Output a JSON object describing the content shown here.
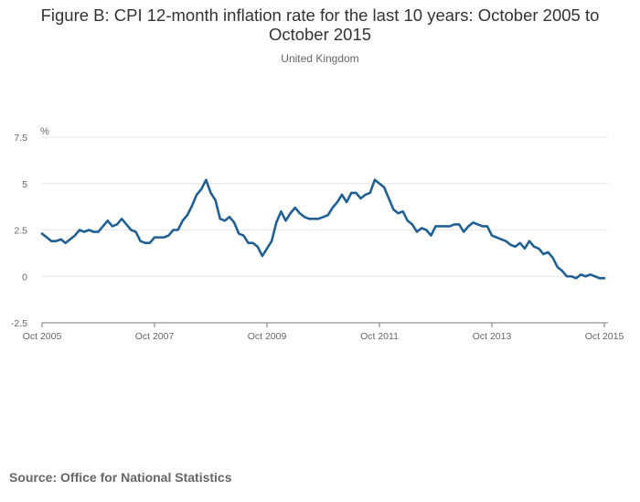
{
  "chart_data": {
    "type": "line",
    "title_line1": "Figure B: CPI 12-month inflation rate for the last 10 years: October 2005 to",
    "title_line2": "October 2015",
    "subtitle": "United Kingdom",
    "ylabel": "%",
    "ylim": [
      -2.5,
      7.5
    ],
    "yticks": [
      -2.5,
      0,
      2.5,
      5,
      7.5
    ],
    "ytick_labels": [
      "-2.5",
      "0",
      "2.5",
      "5",
      "7.5"
    ],
    "xlim": [
      "Oct 2005",
      "Oct 2015"
    ],
    "xticks": [
      "Oct 2005",
      "Oct 2007",
      "Oct 2009",
      "Oct 2011",
      "Oct 2013",
      "Oct 2015"
    ],
    "grid": true,
    "legend": "none",
    "line_color": "#206095",
    "series": [
      {
        "x_start": "Oct 2005",
        "x_end": "Oct 2015",
        "frequency": "monthly",
        "values": [
          2.3,
          2.1,
          1.9,
          1.9,
          2.0,
          1.8,
          2.0,
          2.2,
          2.5,
          2.4,
          2.5,
          2.4,
          2.4,
          2.7,
          3.0,
          2.7,
          2.8,
          3.1,
          2.8,
          2.5,
          2.4,
          1.9,
          1.8,
          1.8,
          2.1,
          2.1,
          2.1,
          2.2,
          2.5,
          2.5,
          3.0,
          3.3,
          3.8,
          4.4,
          4.7,
          5.2,
          4.5,
          4.1,
          3.1,
          3.0,
          3.2,
          2.9,
          2.3,
          2.2,
          1.8,
          1.8,
          1.6,
          1.1,
          1.5,
          1.9,
          2.9,
          3.5,
          3.0,
          3.4,
          3.7,
          3.4,
          3.2,
          3.1,
          3.1,
          3.1,
          3.2,
          3.3,
          3.7,
          4.0,
          4.4,
          4.0,
          4.5,
          4.5,
          4.2,
          4.4,
          4.5,
          5.2,
          5.0,
          4.8,
          4.2,
          3.6,
          3.4,
          3.5,
          3.0,
          2.8,
          2.4,
          2.6,
          2.5,
          2.2,
          2.7,
          2.7,
          2.7,
          2.7,
          2.8,
          2.8,
          2.4,
          2.7,
          2.9,
          2.8,
          2.7,
          2.7,
          2.2,
          2.1,
          2.0,
          1.9,
          1.7,
          1.6,
          1.8,
          1.5,
          1.9,
          1.6,
          1.5,
          1.2,
          1.3,
          1.0,
          0.5,
          0.3,
          0.0,
          0.0,
          -0.1,
          0.1,
          0.0,
          0.1,
          0.0,
          -0.1,
          -0.1
        ]
      }
    ]
  },
  "source": "Source: Office for National Statistics"
}
